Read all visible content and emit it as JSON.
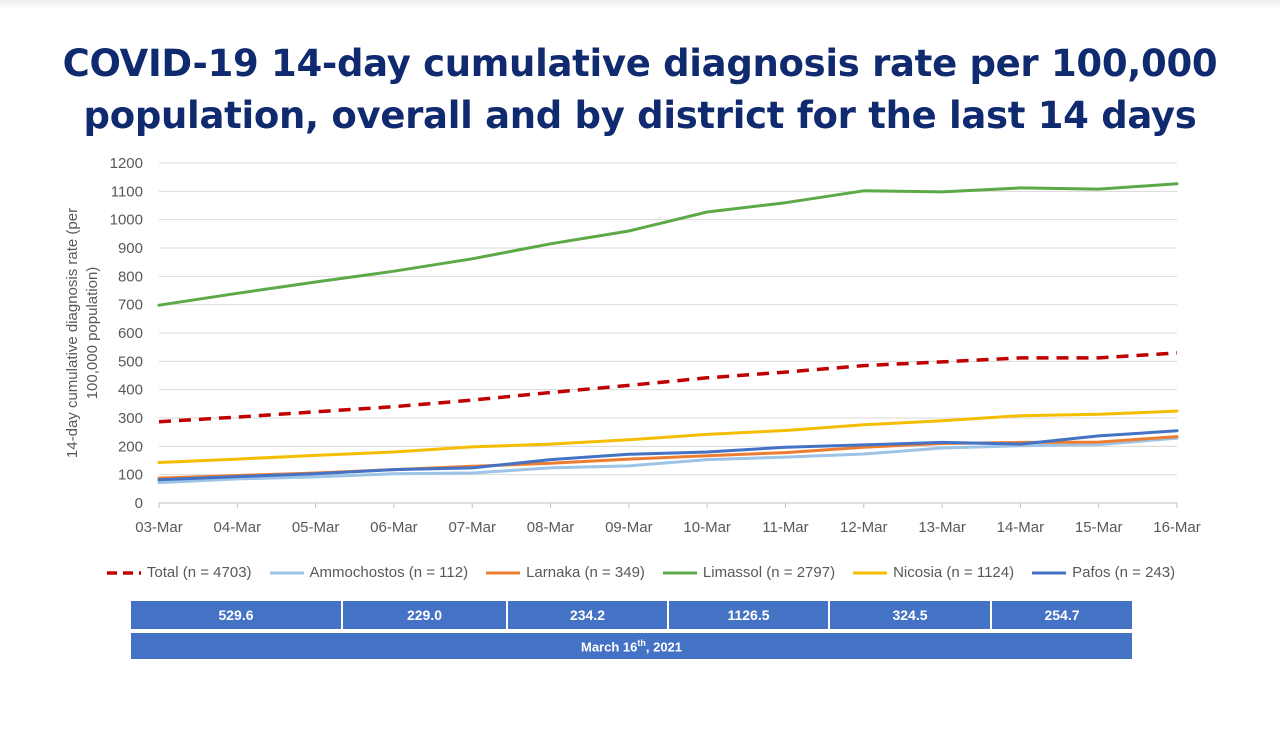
{
  "title": {
    "line1": "COVID-19 14-day cumulative diagnosis rate per 100,000",
    "line2": "population, overall and by district for the last 14 days"
  },
  "chart_data": {
    "type": "line",
    "ylabel_line1": "14-day cumulative diagnosis rate (per",
    "ylabel_line2": "100,000 population)",
    "xlabel": "",
    "ylim": [
      0,
      1200
    ],
    "yticks": [
      0,
      100,
      200,
      300,
      400,
      500,
      600,
      700,
      800,
      900,
      1000,
      1100,
      1200
    ],
    "grid": true,
    "legend_position": "bottom",
    "categories": [
      "03-Mar",
      "04-Mar",
      "05-Mar",
      "06-Mar",
      "07-Mar",
      "08-Mar",
      "09-Mar",
      "10-Mar",
      "11-Mar",
      "12-Mar",
      "13-Mar",
      "14-Mar",
      "15-Mar",
      "16-Mar"
    ],
    "series": [
      {
        "name": "Total (n = 4703)",
        "color": "#c00000",
        "dashed": true,
        "values": [
          287,
          303,
          322,
          340,
          363,
          390,
          415,
          442,
          462,
          485,
          498,
          512,
          512,
          529.6
        ]
      },
      {
        "name": "Ammochostos (n = 112)",
        "color": "#9dc3e6",
        "dashed": false,
        "values": [
          72,
          85,
          92,
          103,
          106,
          124,
          131,
          153,
          162,
          173,
          194,
          202,
          206,
          229.0
        ]
      },
      {
        "name": "Larnaka (n = 349)",
        "color": "#ed7d31",
        "dashed": false,
        "values": [
          88,
          97,
          106,
          118,
          130,
          140,
          155,
          167,
          178,
          197,
          210,
          214,
          215,
          234.2
        ]
      },
      {
        "name": "Limassol (n = 2797)",
        "color": "#5ba947",
        "dashed": false,
        "values": [
          698,
          740,
          780,
          818,
          862,
          915,
          960,
          1027,
          1060,
          1102,
          1098,
          1112,
          1108,
          1126.5
        ]
      },
      {
        "name": "Nicosia (n = 1124)",
        "color": "#f5be00",
        "dashed": false,
        "values": [
          143,
          155,
          168,
          180,
          198,
          208,
          223,
          242,
          256,
          276,
          290,
          308,
          313,
          324.5
        ]
      },
      {
        "name": "Pafos (n = 243)",
        "color": "#4472c4",
        "dashed": false,
        "values": [
          82,
          93,
          103,
          118,
          124,
          153,
          172,
          180,
          197,
          205,
          214,
          208,
          237,
          254.7
        ]
      }
    ]
  },
  "table": {
    "values": [
      "529.6",
      "229.0",
      "234.2",
      "1126.5",
      "324.5",
      "254.7"
    ],
    "date_main": "March 16",
    "date_sup": "th",
    "date_tail": ", 2021"
  }
}
